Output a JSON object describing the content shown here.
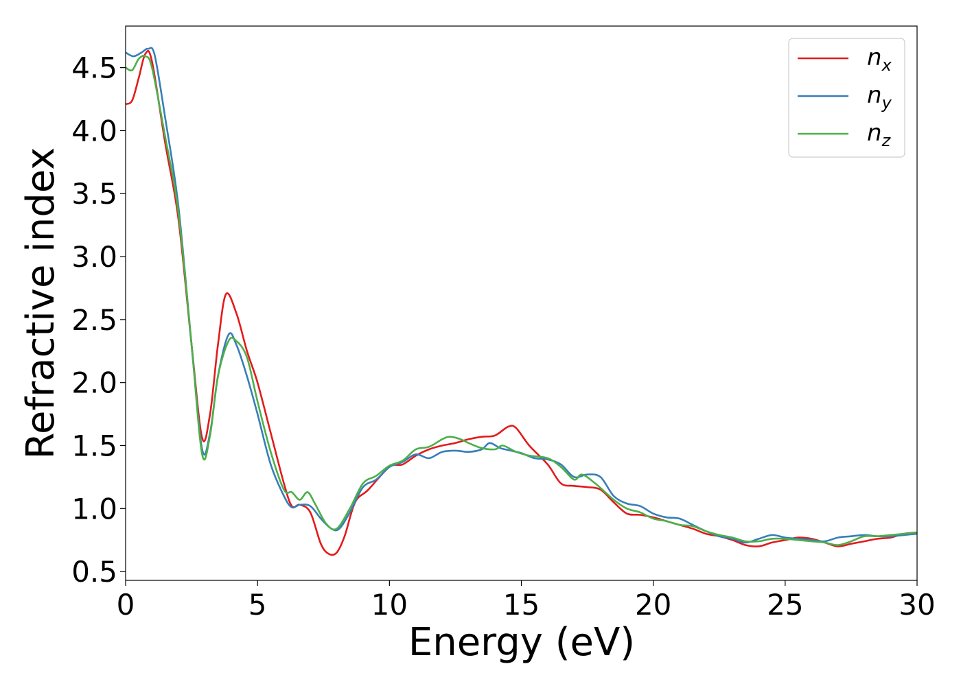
{
  "chart_data": {
    "type": "line",
    "xlabel": "Energy (eV)",
    "ylabel": "Refractive index",
    "xlim": [
      0,
      30
    ],
    "ylim": [
      0.43,
      4.83
    ],
    "xticks": [
      0,
      5,
      10,
      15,
      20,
      25,
      30
    ],
    "xtick_labels": [
      "0",
      "5",
      "10",
      "15",
      "20",
      "25",
      "30"
    ],
    "yticks": [
      0.5,
      1.0,
      1.5,
      2.0,
      2.5,
      3.0,
      3.5,
      4.0,
      4.5
    ],
    "ytick_labels": [
      "0.5",
      "1.0",
      "1.5",
      "2.0",
      "2.5",
      "3.0",
      "3.5",
      "4.0",
      "4.5"
    ],
    "grid": false,
    "legend_position": "top-right",
    "series": [
      {
        "name": "n",
        "subscript": "x",
        "color": "#e41a1c",
        "points": [
          [
            0,
            4.21
          ],
          [
            0.25,
            4.24
          ],
          [
            0.5,
            4.42
          ],
          [
            0.75,
            4.61
          ],
          [
            1,
            4.55
          ],
          [
            1.5,
            3.9
          ],
          [
            2,
            3.3
          ],
          [
            2.5,
            2.3
          ],
          [
            2.9,
            1.56
          ],
          [
            3.2,
            1.75
          ],
          [
            3.5,
            2.3
          ],
          [
            3.8,
            2.7
          ],
          [
            4.2,
            2.55
          ],
          [
            4.6,
            2.25
          ],
          [
            5,
            2.0
          ],
          [
            5.5,
            1.6
          ],
          [
            6,
            1.2
          ],
          [
            6.3,
            1.02
          ],
          [
            6.6,
            1.03
          ],
          [
            7,
            0.97
          ],
          [
            7.4,
            0.72
          ],
          [
            7.7,
            0.64
          ],
          [
            8,
            0.65
          ],
          [
            8.3,
            0.78
          ],
          [
            8.7,
            1.05
          ],
          [
            9.2,
            1.15
          ],
          [
            10,
            1.33
          ],
          [
            10.5,
            1.35
          ],
          [
            11,
            1.42
          ],
          [
            11.5,
            1.47
          ],
          [
            12,
            1.5
          ],
          [
            12.5,
            1.52
          ],
          [
            13,
            1.55
          ],
          [
            13.5,
            1.57
          ],
          [
            14,
            1.58
          ],
          [
            14.5,
            1.65
          ],
          [
            14.8,
            1.64
          ],
          [
            15.3,
            1.5
          ],
          [
            16,
            1.35
          ],
          [
            16.5,
            1.2
          ],
          [
            17,
            1.18
          ],
          [
            17.5,
            1.17
          ],
          [
            18,
            1.15
          ],
          [
            18.5,
            1.05
          ],
          [
            19,
            0.96
          ],
          [
            19.5,
            0.95
          ],
          [
            20,
            0.93
          ],
          [
            20.5,
            0.9
          ],
          [
            21,
            0.87
          ],
          [
            21.5,
            0.84
          ],
          [
            22,
            0.8
          ],
          [
            22.5,
            0.78
          ],
          [
            23,
            0.75
          ],
          [
            23.5,
            0.71
          ],
          [
            24,
            0.7
          ],
          [
            24.5,
            0.73
          ],
          [
            25,
            0.75
          ],
          [
            25.5,
            0.77
          ],
          [
            26,
            0.76
          ],
          [
            26.5,
            0.73
          ],
          [
            27,
            0.7
          ],
          [
            27.5,
            0.72
          ],
          [
            28,
            0.74
          ],
          [
            28.5,
            0.76
          ],
          [
            29,
            0.77
          ],
          [
            29.5,
            0.8
          ],
          [
            30,
            0.81
          ]
        ]
      },
      {
        "name": "n",
        "subscript": "y",
        "color": "#377eb8",
        "points": [
          [
            0,
            4.62
          ],
          [
            0.3,
            4.59
          ],
          [
            0.6,
            4.62
          ],
          [
            0.85,
            4.65
          ],
          [
            1.1,
            4.6
          ],
          [
            1.5,
            4.1
          ],
          [
            2,
            3.4
          ],
          [
            2.5,
            2.3
          ],
          [
            2.9,
            1.47
          ],
          [
            3.2,
            1.6
          ],
          [
            3.5,
            2.05
          ],
          [
            3.9,
            2.38
          ],
          [
            4.2,
            2.3
          ],
          [
            4.6,
            2.05
          ],
          [
            5,
            1.75
          ],
          [
            5.5,
            1.35
          ],
          [
            6,
            1.1
          ],
          [
            6.3,
            1.01
          ],
          [
            6.6,
            1.03
          ],
          [
            7,
            1.02
          ],
          [
            7.4,
            0.92
          ],
          [
            7.8,
            0.84
          ],
          [
            8.1,
            0.84
          ],
          [
            8.5,
            0.97
          ],
          [
            9,
            1.17
          ],
          [
            9.5,
            1.23
          ],
          [
            10,
            1.33
          ],
          [
            10.5,
            1.37
          ],
          [
            11,
            1.43
          ],
          [
            11.5,
            1.4
          ],
          [
            12,
            1.45
          ],
          [
            12.5,
            1.46
          ],
          [
            13,
            1.45
          ],
          [
            13.5,
            1.47
          ],
          [
            13.8,
            1.52
          ],
          [
            14.2,
            1.48
          ],
          [
            14.6,
            1.46
          ],
          [
            15,
            1.44
          ],
          [
            15.5,
            1.4
          ],
          [
            16,
            1.39
          ],
          [
            16.5,
            1.35
          ],
          [
            17,
            1.25
          ],
          [
            17.5,
            1.27
          ],
          [
            18,
            1.25
          ],
          [
            18.5,
            1.1
          ],
          [
            19,
            1.04
          ],
          [
            19.5,
            1.02
          ],
          [
            20,
            0.96
          ],
          [
            20.5,
            0.93
          ],
          [
            21,
            0.92
          ],
          [
            21.5,
            0.87
          ],
          [
            22,
            0.82
          ],
          [
            22.5,
            0.78
          ],
          [
            23,
            0.76
          ],
          [
            23.5,
            0.73
          ],
          [
            24,
            0.76
          ],
          [
            24.5,
            0.79
          ],
          [
            25,
            0.77
          ],
          [
            25.5,
            0.76
          ],
          [
            26,
            0.75
          ],
          [
            26.5,
            0.74
          ],
          [
            27,
            0.77
          ],
          [
            27.5,
            0.78
          ],
          [
            28,
            0.79
          ],
          [
            28.5,
            0.78
          ],
          [
            29,
            0.78
          ],
          [
            29.5,
            0.79
          ],
          [
            30,
            0.8
          ]
        ]
      },
      {
        "name": "n",
        "subscript": "z",
        "color": "#4daf4a",
        "points": [
          [
            0,
            4.5
          ],
          [
            0.25,
            4.48
          ],
          [
            0.5,
            4.57
          ],
          [
            0.75,
            4.59
          ],
          [
            1,
            4.5
          ],
          [
            1.5,
            3.95
          ],
          [
            2,
            3.35
          ],
          [
            2.5,
            2.3
          ],
          [
            2.9,
            1.43
          ],
          [
            3.2,
            1.58
          ],
          [
            3.5,
            2.05
          ],
          [
            3.9,
            2.33
          ],
          [
            4.2,
            2.33
          ],
          [
            4.6,
            2.2
          ],
          [
            5,
            1.85
          ],
          [
            5.5,
            1.45
          ],
          [
            6,
            1.15
          ],
          [
            6.3,
            1.13
          ],
          [
            6.6,
            1.07
          ],
          [
            6.9,
            1.13
          ],
          [
            7.2,
            1.03
          ],
          [
            7.6,
            0.88
          ],
          [
            8,
            0.84
          ],
          [
            8.5,
            1.0
          ],
          [
            9,
            1.2
          ],
          [
            9.5,
            1.26
          ],
          [
            10,
            1.34
          ],
          [
            10.5,
            1.38
          ],
          [
            11,
            1.47
          ],
          [
            11.5,
            1.49
          ],
          [
            12,
            1.55
          ],
          [
            12.3,
            1.57
          ],
          [
            12.7,
            1.55
          ],
          [
            13,
            1.52
          ],
          [
            13.5,
            1.48
          ],
          [
            14,
            1.47
          ],
          [
            14.3,
            1.5
          ],
          [
            14.8,
            1.45
          ],
          [
            15.3,
            1.42
          ],
          [
            16,
            1.4
          ],
          [
            16.5,
            1.33
          ],
          [
            17,
            1.23
          ],
          [
            17.3,
            1.27
          ],
          [
            17.8,
            1.2
          ],
          [
            18.5,
            1.07
          ],
          [
            19,
            1.0
          ],
          [
            19.5,
            0.97
          ],
          [
            20,
            0.92
          ],
          [
            20.5,
            0.9
          ],
          [
            21,
            0.87
          ],
          [
            21.5,
            0.86
          ],
          [
            22,
            0.82
          ],
          [
            22.5,
            0.79
          ],
          [
            23,
            0.77
          ],
          [
            23.5,
            0.74
          ],
          [
            24,
            0.74
          ],
          [
            24.5,
            0.76
          ],
          [
            25,
            0.76
          ],
          [
            25.5,
            0.75
          ],
          [
            26,
            0.74
          ],
          [
            26.5,
            0.73
          ],
          [
            27,
            0.71
          ],
          [
            27.5,
            0.74
          ],
          [
            28,
            0.78
          ],
          [
            28.5,
            0.78
          ],
          [
            29,
            0.79
          ],
          [
            29.5,
            0.8
          ],
          [
            30,
            0.81
          ]
        ]
      }
    ]
  }
}
